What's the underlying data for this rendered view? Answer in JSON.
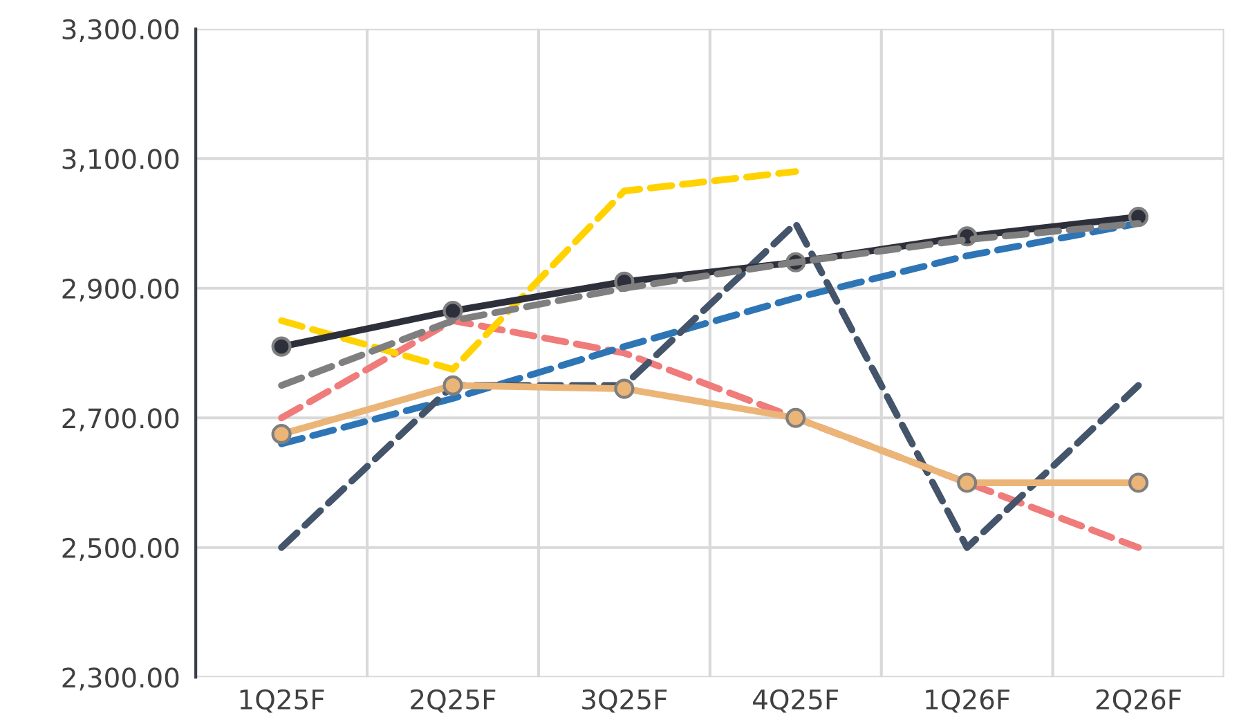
{
  "chart_data": {
    "type": "line",
    "categories": [
      "1Q25F",
      "2Q25F",
      "3Q25F",
      "4Q25F",
      "1Q26F",
      "2Q26F"
    ],
    "series": [
      {
        "color": "#f07b7b",
        "line_style": "dashed",
        "marker": "none",
        "values": [
          2700,
          2850,
          2800,
          2700,
          2600,
          2500
        ]
      },
      {
        "color": "#2e75b6",
        "line_style": "dashed",
        "marker": "none",
        "values": [
          2660,
          2730,
          2810,
          2885,
          2950,
          3000
        ]
      },
      {
        "color": "#44546a",
        "line_style": "dashed",
        "marker": "none",
        "values": [
          2500,
          2750,
          2750,
          3000,
          2500,
          2750
        ]
      },
      {
        "color": "#ffd200",
        "line_style": "dashed",
        "marker": "none",
        "values": [
          2850,
          2775,
          3050,
          3080,
          null,
          null
        ]
      },
      {
        "color": "#ebb577",
        "line_style": "solid",
        "marker": "circle",
        "values": [
          2675,
          2750,
          2745,
          2700,
          2600,
          2600
        ]
      },
      {
        "color": "#2d2f3a",
        "line_style": "solid",
        "marker": "circle",
        "values": [
          2810,
          2865,
          2910,
          2940,
          2980,
          3010
        ]
      },
      {
        "color": "#7f7f7f",
        "line_style": "dashed",
        "marker": "none",
        "values": [
          2750,
          2850,
          2900,
          2940,
          2975,
          3000
        ]
      }
    ],
    "ylim": [
      2300,
      3300
    ],
    "yticks": [
      {
        "value": 2300,
        "label": "2,300.00"
      },
      {
        "value": 2500,
        "label": "2,500.00"
      },
      {
        "value": 2700,
        "label": "2,700.00"
      },
      {
        "value": 2900,
        "label": "2,900.00"
      },
      {
        "value": 3100,
        "label": "3,100.00"
      },
      {
        "value": 3300,
        "label": "3,300.00"
      }
    ],
    "grid": true
  }
}
